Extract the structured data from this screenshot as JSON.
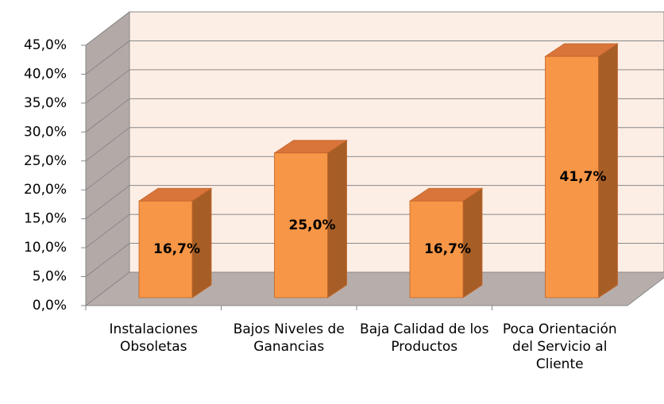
{
  "chart_data": {
    "type": "bar",
    "categories": [
      "Instalaciones Obsoletas",
      "Bajos Niveles de Ganancias",
      "Baja Calidad de los Productos",
      "Poca Orientación del Servicio al Cliente"
    ],
    "values": [
      16.7,
      25.0,
      16.7,
      41.7
    ],
    "value_labels": [
      "16,7%",
      "25,0%",
      "16,7%",
      "41,7%"
    ],
    "color": "#f79646",
    "ylim": [
      0,
      45
    ],
    "yticks": [
      {
        "value": 0,
        "label": "0,0%"
      },
      {
        "value": 5,
        "label": "5,0%"
      },
      {
        "value": 10,
        "label": "10,0%"
      },
      {
        "value": 15,
        "label": "15,0%"
      },
      {
        "value": 20,
        "label": "20,0%"
      },
      {
        "value": 25,
        "label": "25,0%"
      },
      {
        "value": 30,
        "label": "30,0%"
      },
      {
        "value": 35,
        "label": "35,0%"
      },
      {
        "value": 40,
        "label": "40,0%"
      },
      {
        "value": 45,
        "label": "45,0%"
      }
    ],
    "grid": true
  }
}
